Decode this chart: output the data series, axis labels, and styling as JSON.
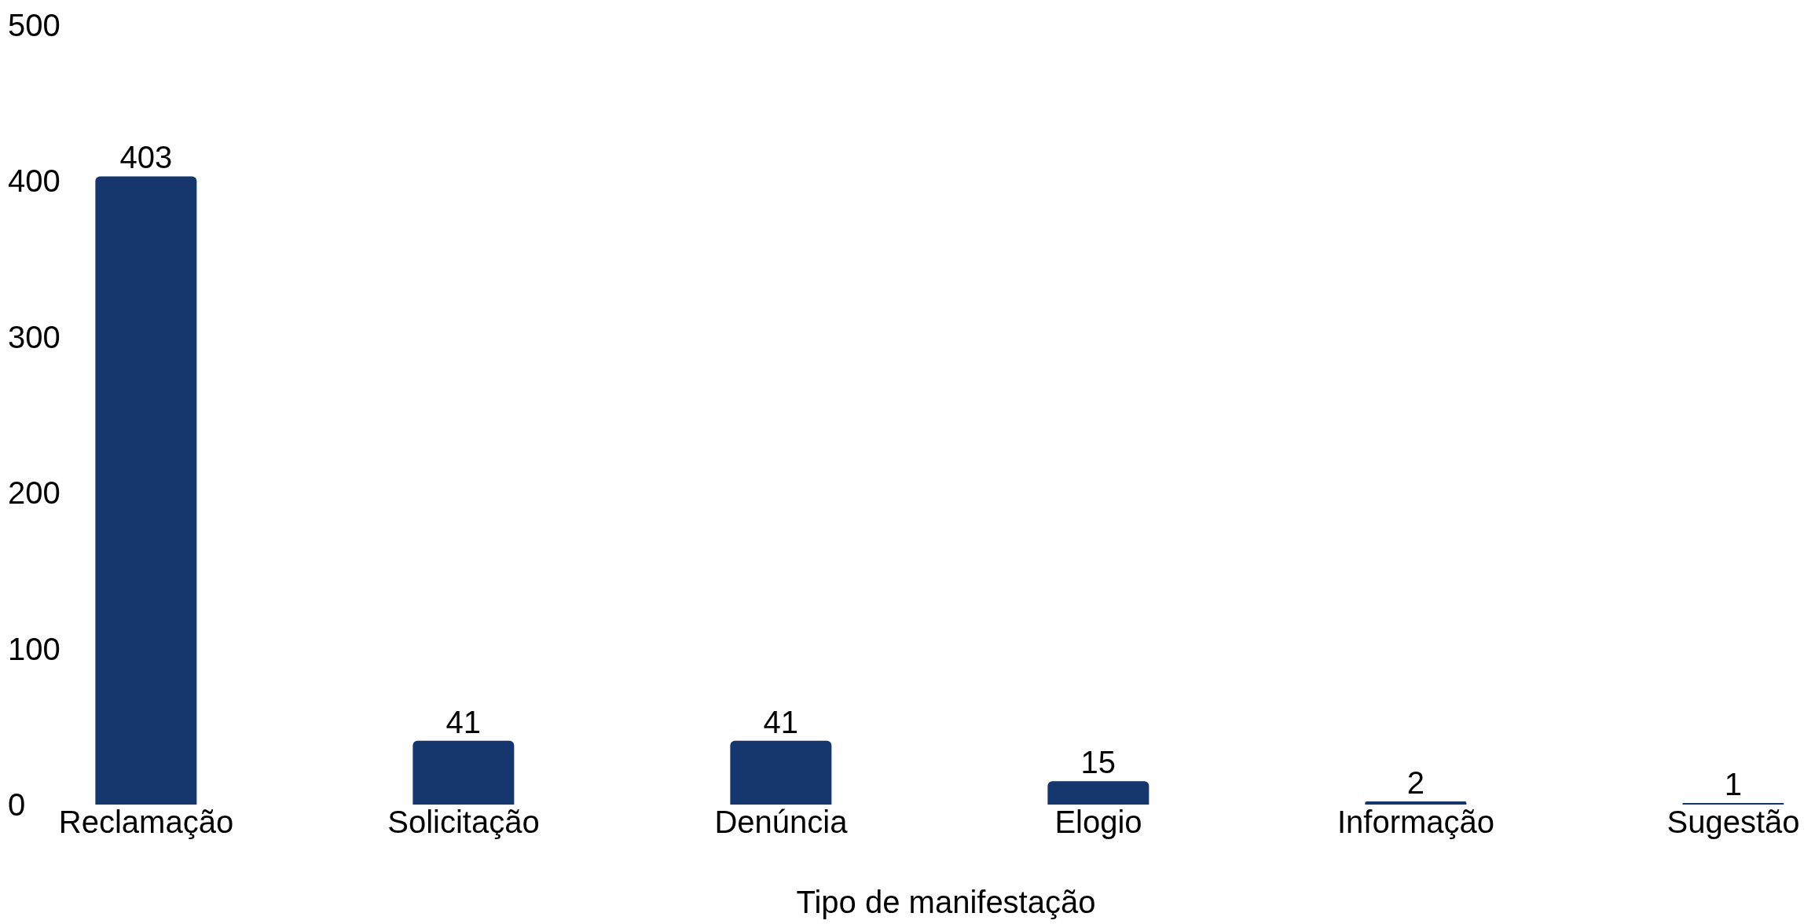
{
  "chart_data": {
    "type": "bar",
    "xlabel": "Tipo de manifestação",
    "categories": [
      "Reclamação",
      "Solicitação",
      "Denúncia",
      "Elogio",
      "Informação",
      "Sugestão"
    ],
    "values": [
      403,
      41,
      41,
      15,
      2,
      1
    ],
    "color": "#15376e",
    "ylim": [
      0,
      500
    ],
    "yticks": [
      0,
      100,
      200,
      300,
      400,
      500
    ],
    "grid": false,
    "data_labels": true
  }
}
